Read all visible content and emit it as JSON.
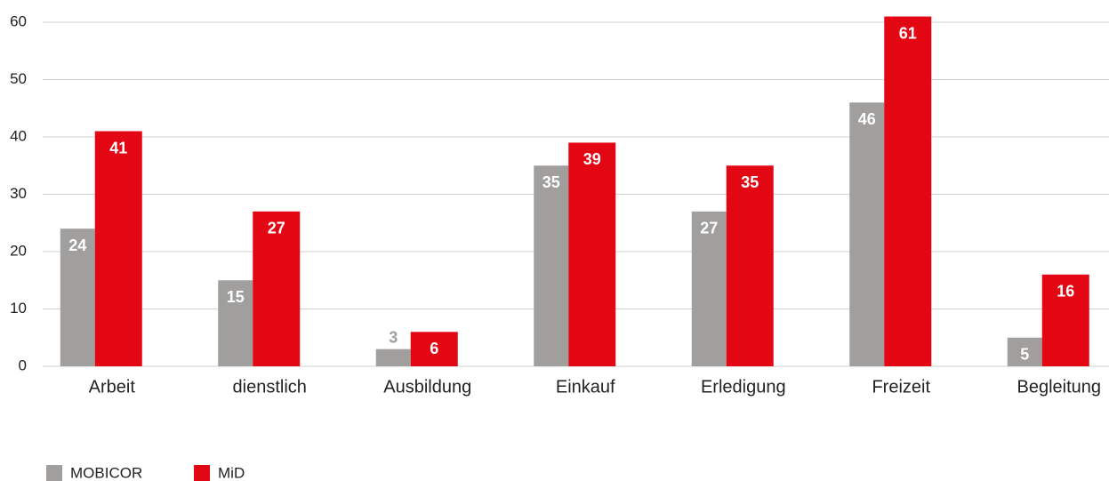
{
  "chart_data": {
    "type": "bar",
    "categories": [
      "Arbeit",
      "dienstlich",
      "Ausbildung",
      "Einkauf",
      "Erledigung",
      "Freizeit",
      "Begleitung"
    ],
    "series": [
      {
        "name": "MOBICOR",
        "color": "#a09f9e",
        "values": [
          24,
          15,
          3,
          35,
          27,
          46,
          5
        ]
      },
      {
        "name": "MiD",
        "color": "#e30613",
        "values": [
          41,
          27,
          6,
          39,
          35,
          61,
          16
        ]
      }
    ],
    "ylim": [
      0,
      60
    ],
    "yticks": [
      0,
      10,
      20,
      30,
      40,
      50,
      60
    ],
    "grid": true,
    "legend": "bottom-left"
  }
}
